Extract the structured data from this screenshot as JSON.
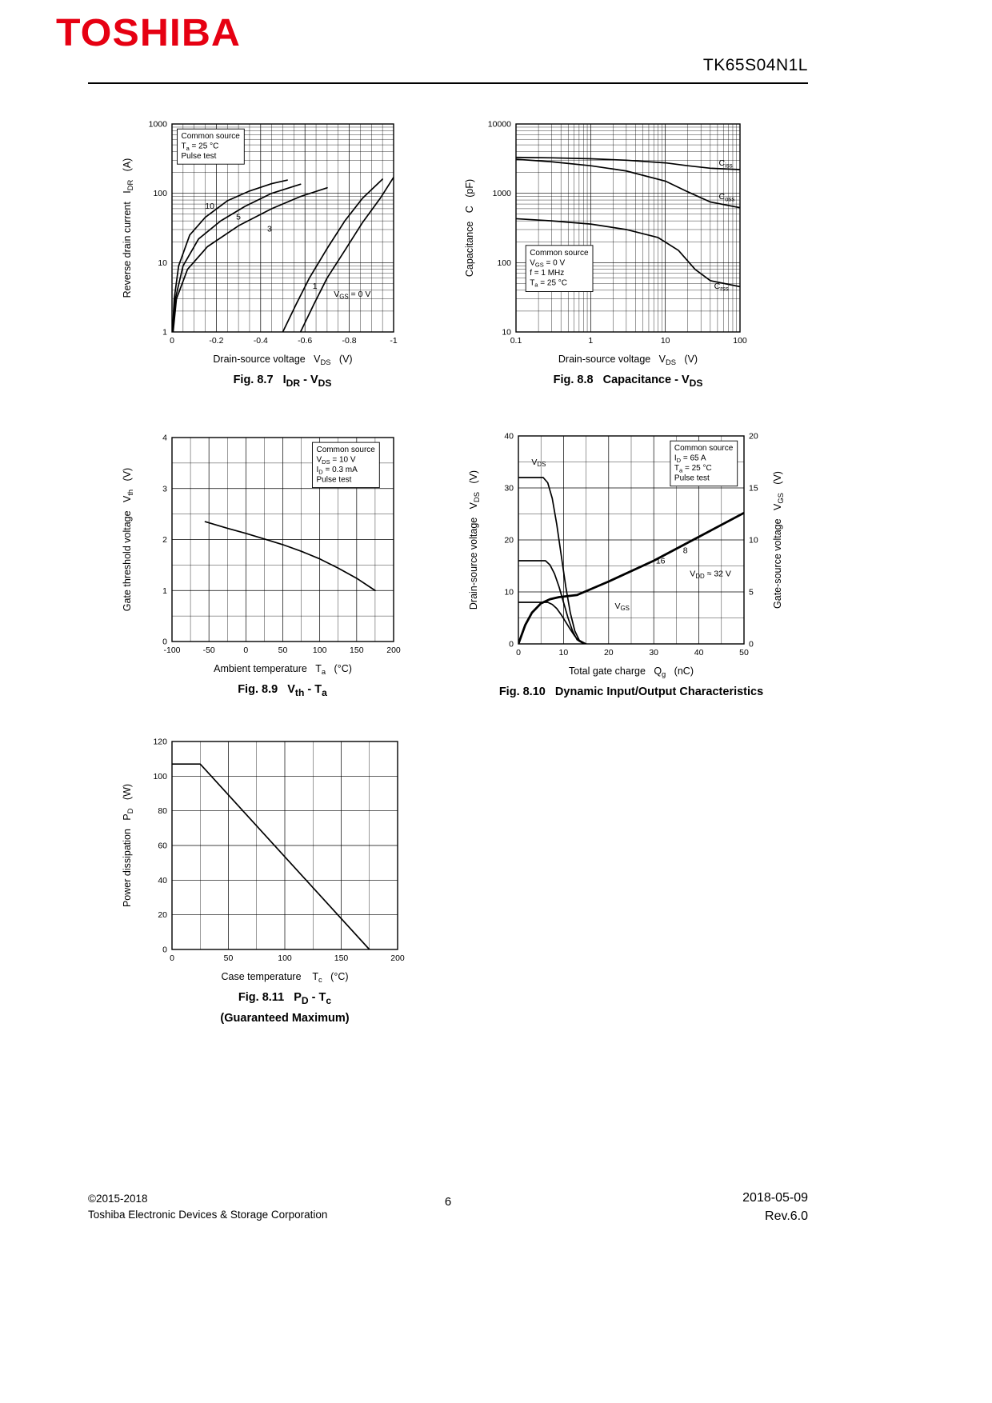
{
  "page": {
    "brand": "TOSHIBA",
    "part_number": "TK65S04N1L",
    "page_number": "6",
    "copyright_line1": "©2015-2018",
    "copyright_line2": "Toshiba Electronic Devices & Storage Corporation",
    "date": "2018-05-09",
    "revision": "Rev.6.0"
  },
  "chart_data": [
    {
      "id": "fig8_7",
      "type": "line",
      "caption": "Fig. 8.7   I|DR| - V|DS|",
      "x": {
        "scale": "linear",
        "min": 0,
        "max": -1,
        "ticks": [
          0,
          -0.2,
          -0.4,
          -0.6,
          -0.8,
          -1
        ],
        "minor": 4,
        "title": "Drain-source voltage   V|DS|   (V)"
      },
      "y": {
        "scale": "log",
        "min": 1,
        "max": 1000,
        "title": "Reverse drain current   I|DR|   (A)"
      },
      "series": [
        {
          "name": "VGS=10V",
          "x": [
            -0.002,
            -0.01,
            -0.03,
            -0.08,
            -0.15,
            -0.25,
            -0.35,
            -0.45,
            -0.52
          ],
          "y": [
            1,
            3,
            9,
            25,
            45,
            78,
            108,
            138,
            155
          ]
        },
        {
          "name": "VGS=5V",
          "x": [
            -0.003,
            -0.015,
            -0.05,
            -0.12,
            -0.22,
            -0.33,
            -0.45,
            -0.58
          ],
          "y": [
            1,
            3,
            9,
            22,
            40,
            65,
            100,
            135
          ]
        },
        {
          "name": "VGS=3V",
          "x": [
            -0.005,
            -0.02,
            -0.07,
            -0.16,
            -0.3,
            -0.45,
            -0.58,
            -0.7
          ],
          "y": [
            1,
            3,
            8,
            17,
            34,
            60,
            90,
            120
          ]
        },
        {
          "name": "VGS=1V",
          "x": [
            -0.5,
            -0.56,
            -0.62,
            -0.7,
            -0.78,
            -0.86,
            -0.95
          ],
          "y": [
            1,
            2.5,
            6,
            16,
            40,
            85,
            160
          ]
        },
        {
          "name": "VGS=0V",
          "x": [
            -0.58,
            -0.64,
            -0.7,
            -0.78,
            -0.86,
            -0.94,
            -1
          ],
          "y": [
            1,
            2.5,
            6,
            15,
            38,
            85,
            170
          ]
        }
      ],
      "labels": [
        {
          "text": "10",
          "x": -0.17,
          "y": 60,
          "anchor": "middle"
        },
        {
          "text": "5",
          "x": -0.3,
          "y": 42,
          "anchor": "middle"
        },
        {
          "text": "3",
          "x": -0.44,
          "y": 28,
          "anchor": "middle"
        },
        {
          "text": "1",
          "x": -0.645,
          "y": 4.2,
          "anchor": "middle"
        },
        {
          "text": "V|GS| = 0 V",
          "x": -0.73,
          "y": 3.2,
          "anchor": "start"
        }
      ],
      "note": {
        "lines": [
          "Common source",
          "T|a| = 25 °C",
          "Pulse test"
        ],
        "fx": 0.02,
        "fy": 0.02
      }
    },
    {
      "id": "fig8_8",
      "type": "line",
      "caption": "Fig. 8.8   Capacitance - V|DS|",
      "x": {
        "scale": "log",
        "min": 0.1,
        "max": 100,
        "title": "Drain-source voltage   V|DS|   (V)"
      },
      "y": {
        "scale": "log",
        "min": 10,
        "max": 10000,
        "title": "Capacitance   C   (pF)"
      },
      "series": [
        {
          "name": "Ciss",
          "x": [
            0.1,
            0.3,
            1,
            3,
            10,
            20,
            40,
            100
          ],
          "y": [
            3300,
            3250,
            3150,
            3000,
            2750,
            2500,
            2300,
            2200
          ]
        },
        {
          "name": "Coss",
          "x": [
            0.1,
            0.3,
            1,
            3,
            10,
            20,
            40,
            100
          ],
          "y": [
            3100,
            2850,
            2500,
            2100,
            1500,
            1050,
            750,
            620
          ]
        },
        {
          "name": "Crss",
          "x": [
            0.1,
            0.3,
            1,
            3,
            8,
            15,
            25,
            40,
            100
          ],
          "y": [
            430,
            400,
            360,
            300,
            230,
            150,
            80,
            55,
            45
          ]
        }
      ],
      "labels": [
        {
          "text": "C|iss|",
          "x": 52,
          "y": 2500,
          "anchor": "start"
        },
        {
          "text": "C|oss|",
          "x": 52,
          "y": 820,
          "anchor": "start"
        },
        {
          "text": "C|rss|",
          "x": 45,
          "y": 42,
          "anchor": "start"
        }
      ],
      "note": {
        "lines": [
          "Common source",
          "V|GS| = 0 V",
          "f = 1 MHz",
          "T|a| = 25 °C"
        ],
        "fx": 0.04,
        "fy": 0.58
      }
    },
    {
      "id": "fig8_9",
      "type": "line",
      "caption": "Fig. 8.9   V|th| - T|a|",
      "x": {
        "scale": "linear",
        "min": -100,
        "max": 200,
        "ticks": [
          -100,
          -50,
          0,
          50,
          100,
          150,
          200
        ],
        "minor": 2,
        "title": "Ambient temperature   T|a|   (°C)"
      },
      "y": {
        "scale": "linear",
        "min": 0,
        "max": 4,
        "ticks": [
          0,
          1,
          2,
          3,
          4
        ],
        "minor": 2,
        "title": "Gate threshold voltage   V|th|   (V)"
      },
      "series": [
        {
          "name": "Vth",
          "x": [
            -55,
            -25,
            0,
            25,
            50,
            75,
            100,
            125,
            150,
            175
          ],
          "y": [
            2.35,
            2.22,
            2.12,
            2.01,
            1.9,
            1.77,
            1.62,
            1.44,
            1.24,
            1.0
          ]
        }
      ],
      "note": {
        "lines": [
          "Common source",
          "V|DS| = 10 V",
          "I|D| = 0.3 mA",
          "Pulse test"
        ],
        "fx": 0.63,
        "fy": 0.02
      }
    },
    {
      "id": "fig8_10",
      "type": "line",
      "caption": "Fig. 8.10   Dynamic Input/Output Characteristics",
      "x": {
        "scale": "linear",
        "min": 0,
        "max": 50,
        "ticks": [
          0,
          10,
          20,
          30,
          40,
          50
        ],
        "minor": 2,
        "title": "Total gate charge   Q|g|   (nC)"
      },
      "y": {
        "scale": "linear",
        "min": 0,
        "max": 40,
        "ticks": [
          0,
          10,
          20,
          30,
          40
        ],
        "minor": 2,
        "title": "Drain-source voltage   V|DS|   (V)"
      },
      "y2": {
        "scale": "linear",
        "min": 0,
        "max": 20,
        "ticks": [
          0,
          5,
          10,
          15,
          20
        ],
        "title": "Gate-source voltage   V|GS|   (V)"
      },
      "series": [
        {
          "name": "VDS at VDD=32V",
          "x": [
            0,
            5.5,
            6.5,
            7.5,
            8.5,
            9.5,
            10.5,
            11.5,
            12.5,
            13.5,
            15
          ],
          "y": [
            32,
            32,
            31,
            28,
            23,
            17,
            11,
            6,
            2.5,
            0.7,
            0
          ]
        },
        {
          "name": "VDS at VDD=16V",
          "x": [
            0,
            6,
            7,
            8,
            9,
            10,
            11,
            12,
            13,
            14.5
          ],
          "y": [
            16,
            16,
            15.2,
            13.5,
            11,
            8,
            5,
            2.5,
            0.8,
            0
          ]
        },
        {
          "name": "VDS at VDD=8V",
          "x": [
            0,
            6.5,
            7.5,
            8.5,
            9.5,
            10.5,
            11.5,
            12.5,
            13.5,
            15
          ],
          "y": [
            8,
            8,
            7.6,
            6.8,
            5.6,
            4.2,
            2.8,
            1.5,
            0.5,
            0
          ]
        },
        {
          "name": "VGS",
          "axis": "y2",
          "width": 2.8,
          "x": [
            0,
            1.5,
            3,
            5,
            7,
            9,
            13,
            20,
            30,
            40,
            50
          ],
          "y": [
            0,
            1.8,
            3,
            3.9,
            4.3,
            4.5,
            4.7,
            6,
            8,
            10.3,
            12.6
          ]
        }
      ],
      "labels": [
        {
          "text": "V|DS|",
          "x": 4.5,
          "y": 34.5,
          "anchor": "middle"
        },
        {
          "text": "V|GS|",
          "x": 23,
          "y": 6.8,
          "anchor": "middle"
        },
        {
          "text": "8",
          "x": 37,
          "y": 17.5,
          "anchor": "middle"
        },
        {
          "text": "16",
          "x": 31.5,
          "y": 15.5,
          "anchor": "middle"
        },
        {
          "text": "V|DD| ≈ 32 V",
          "x": 38,
          "y": 13,
          "anchor": "start"
        }
      ],
      "note": {
        "lines": [
          "Common source",
          "I|D| = 65 A",
          "T|a| = 25 °C",
          "Pulse test"
        ],
        "fx": 0.67,
        "fy": 0.02
      }
    },
    {
      "id": "fig8_11",
      "type": "line",
      "caption": "Fig. 8.11   P|D| - T|c|",
      "caption2": "(Guaranteed Maximum)",
      "x": {
        "scale": "linear",
        "min": 0,
        "max": 200,
        "ticks": [
          0,
          50,
          100,
          150,
          200
        ],
        "minor": 2,
        "title": "Case temperature    T|c|   (°C)"
      },
      "y": {
        "scale": "linear",
        "min": 0,
        "max": 120,
        "ticks": [
          0,
          20,
          40,
          60,
          80,
          100,
          120
        ],
        "minor": 1,
        "title": "Power dissipation   P|D|   (W)"
      },
      "series": [
        {
          "name": "PD",
          "x": [
            0,
            25,
            175
          ],
          "y": [
            107,
            107,
            0
          ]
        }
      ]
    }
  ]
}
